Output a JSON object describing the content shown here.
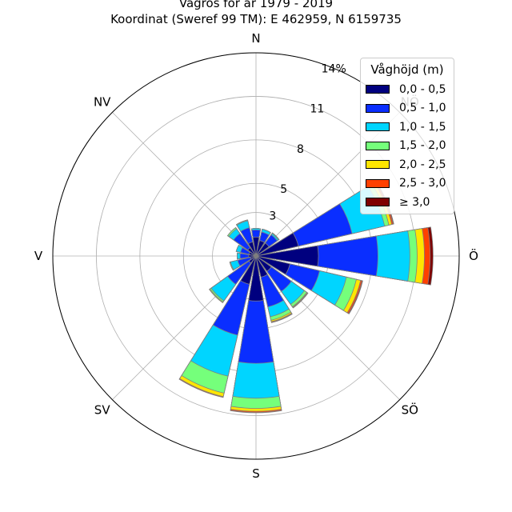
{
  "title": {
    "line1": "Vågros för år 1979 - 2019",
    "line2": "Koordinat (Sweref 99 TM): E 462959, N 6159735"
  },
  "chart_data": {
    "type": "windrose",
    "title": "Vågros för år 1979 - 2019",
    "subtitle": "Koordinat (Sweref 99 TM): E 462959, N 6159735",
    "directions": [
      "N",
      "NNÖ",
      "NÖ",
      "ÖNÖ",
      "Ö",
      "ÖSÖ",
      "SÖ",
      "SSÖ",
      "S",
      "SSV",
      "SV",
      "VSV",
      "V",
      "VNV",
      "NV",
      "NNV"
    ],
    "compass_labels": [
      "N",
      "NV",
      "V",
      "SV",
      "S",
      "SÖ",
      "Ö",
      "NÖ"
    ],
    "radial_ticks": [
      "3",
      "5",
      "8",
      "11",
      "14%"
    ],
    "radial_tick_values": [
      3,
      5,
      8,
      11,
      14
    ],
    "rmax": 14,
    "legend_title": "Våghöjd (m)",
    "legend_position": "top-right",
    "grid": true,
    "bins": [
      {
        "label": "0,0 - 0,5",
        "color": "#00007f"
      },
      {
        "label": "0,5 - 1,0",
        "color": "#0a2eff"
      },
      {
        "label": "1,0 - 1,5",
        "color": "#00d5ff"
      },
      {
        "label": "1,5 - 2,0",
        "color": "#75ff7b"
      },
      {
        "label": "2,0 - 2,5",
        "color": "#ffe600"
      },
      {
        "label": "2,5 - 3,0",
        "color": "#ff4000"
      },
      {
        "label": "≥ 3,0",
        "color": "#7f0000"
      }
    ],
    "cumulative_percent": [
      [
        1.3,
        1.8,
        1.9,
        1.9,
        1.9,
        1.9,
        1.9
      ],
      [
        1.1,
        1.7,
        1.9,
        1.9,
        1.9,
        1.9,
        1.9
      ],
      [
        1.1,
        1.8,
        1.9,
        1.95,
        1.95,
        1.95,
        1.95
      ],
      [
        3.0,
        6.8,
        9.1,
        9.4,
        9.6,
        9.7,
        9.75
      ],
      [
        4.3,
        8.4,
        10.6,
        11.1,
        11.6,
        12.0,
        12.2
      ],
      [
        2.4,
        4.5,
        6.4,
        7.1,
        7.4,
        7.5,
        7.55
      ],
      [
        1.3,
        3.0,
        4.1,
        4.3,
        4.35,
        4.38,
        4.4
      ],
      [
        1.5,
        3.6,
        4.3,
        4.55,
        4.65,
        4.7,
        4.72
      ],
      [
        3.1,
        7.4,
        9.8,
        10.5,
        10.7,
        10.78,
        10.8
      ],
      [
        2.0,
        5.6,
        8.5,
        9.7,
        9.95,
        10.0,
        10.0
      ],
      [
        0.6,
        2.4,
        3.8,
        3.9,
        3.95,
        3.95,
        3.95
      ],
      [
        0.4,
        1.3,
        1.8,
        1.85,
        1.85,
        1.85,
        1.85
      ],
      [
        0.5,
        1.1,
        1.3,
        1.3,
        1.3,
        1.3,
        1.3
      ],
      [
        0.5,
        1.1,
        1.4,
        1.4,
        1.4,
        1.4,
        1.4
      ],
      [
        0.7,
        1.9,
        2.3,
        2.4,
        2.4,
        2.4,
        2.4
      ],
      [
        1.0,
        2.0,
        2.5,
        2.55,
        2.55,
        2.55,
        2.55
      ]
    ]
  }
}
